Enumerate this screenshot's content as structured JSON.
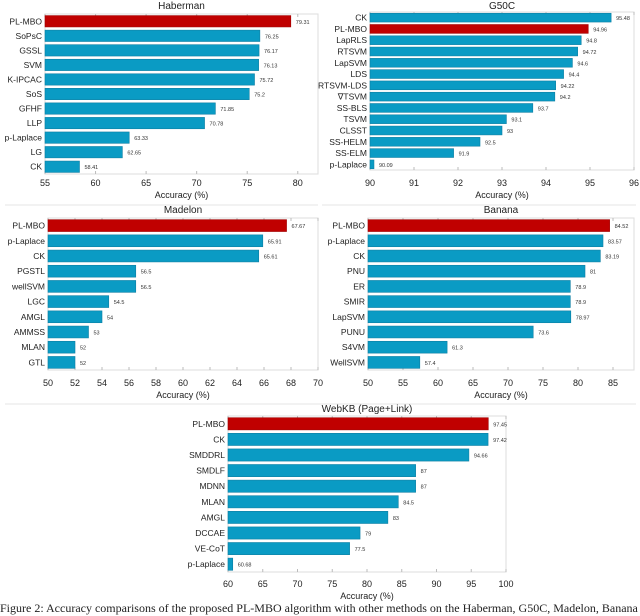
{
  "colors": {
    "highlight": "#c00000",
    "bar": "#0a9bc4",
    "bar_edge": "#0d7fa3"
  },
  "caption": "Figure 2: Accuracy comparisons of the proposed PL-MBO algorithm with other methods on the Haberman, G50C, Madelon, Banana",
  "chart_data": [
    {
      "type": "bar",
      "orientation": "horizontal",
      "title": "Haberman",
      "xlabel": "Accuracy (%)",
      "ylabel": "",
      "xlim": [
        55,
        82
      ],
      "xticks": [
        55,
        60,
        65,
        70,
        75,
        80
      ],
      "highlight": "PL-MBO",
      "categories": [
        "PL-MBO",
        "SoPsC",
        "GSSL",
        "SVM",
        "K-IPCAC",
        "SoS",
        "GFHF",
        "LLP",
        "p-Laplace",
        "LG",
        "CK"
      ],
      "values": [
        79.31,
        76.25,
        76.17,
        76.13,
        75.72,
        75.2,
        71.85,
        70.78,
        63.33,
        62.65,
        58.41
      ],
      "labels": [
        "79.31",
        "76.25",
        "76.17",
        "76.13",
        "75.72",
        "75.2",
        "71.85",
        "70.78",
        "63.33",
        "62.65",
        "58.41"
      ]
    },
    {
      "type": "bar",
      "orientation": "horizontal",
      "title": "G50C",
      "xlabel": "Accuracy (%)",
      "ylabel": "",
      "xlim": [
        90,
        96
      ],
      "xticks": [
        90,
        91,
        92,
        93,
        94,
        95,
        96
      ],
      "highlight": "PL-MBO",
      "categories": [
        "CK",
        "PL-MBO",
        "LapRLS",
        "RTSVM",
        "LapSVM",
        "LDS",
        "RTSVM-LDS",
        "∇TSVM",
        "SS-BLS",
        "TSVM",
        "CLSST",
        "SS-HELM",
        "SS-ELM",
        "p-Laplace"
      ],
      "values": [
        95.48,
        94.96,
        94.8,
        94.72,
        94.6,
        94.4,
        94.22,
        94.2,
        93.7,
        93.1,
        93,
        92.5,
        91.9,
        90.09
      ],
      "labels": [
        "95.48",
        "94.96",
        "94.8",
        "94.72",
        "94.6",
        "94.4",
        "94.22",
        "94.2",
        "93.7",
        "93.1",
        "93",
        "92.5",
        "91.9",
        "90.09"
      ]
    },
    {
      "type": "bar",
      "orientation": "horizontal",
      "title": "Madelon",
      "xlabel": "Accuracy (%)",
      "ylabel": "",
      "xlim": [
        50,
        70
      ],
      "xticks": [
        50,
        52,
        54,
        56,
        58,
        60,
        62,
        64,
        66,
        68,
        70
      ],
      "highlight": "PL-MBO",
      "categories": [
        "PL-MBO",
        "p-Laplace",
        "CK",
        "PGSTL",
        "wellSVM",
        "LGC",
        "AMGL",
        "AMMSS",
        "MLAN",
        "GTL"
      ],
      "values": [
        67.67,
        65.91,
        65.61,
        56.5,
        56.5,
        54.5,
        54,
        53,
        52,
        52
      ],
      "labels": [
        "67.67",
        "65.91",
        "65.61",
        "56.5",
        "56.5",
        "54.5",
        "54",
        "53",
        "52",
        "52"
      ]
    },
    {
      "type": "bar",
      "orientation": "horizontal",
      "title": "Banana",
      "xlabel": "Accuracy (%)",
      "ylabel": "",
      "xlim": [
        50,
        88
      ],
      "xticks": [
        50,
        55,
        60,
        65,
        70,
        75,
        80,
        85
      ],
      "highlight": "PL-MBO",
      "categories": [
        "PL-MBO",
        "p-Laplace",
        "CK",
        "PNU",
        "ER",
        "SMIR",
        "LapSVM",
        "PUNU",
        "S4VM",
        "WellSVM"
      ],
      "values": [
        84.52,
        83.57,
        83.19,
        81,
        78.9,
        78.9,
        78.97,
        73.6,
        61.3,
        57.4
      ],
      "labels": [
        "84.52",
        "83.57",
        "83.19",
        "81",
        "78.9",
        "78.9",
        "78.97",
        "73.6",
        "61.3",
        "57.4"
      ]
    },
    {
      "type": "bar",
      "orientation": "horizontal",
      "title": "WebKB (Page+Link)",
      "xlabel": "Accuracy (%)",
      "ylabel": "",
      "xlim": [
        60,
        100
      ],
      "xticks": [
        60,
        65,
        70,
        75,
        80,
        85,
        90,
        95,
        100
      ],
      "highlight": "PL-MBO",
      "categories": [
        "PL-MBO",
        "CK",
        "SMDDRL",
        "SMDLF",
        "MDNN",
        "MLAN",
        "AMGL",
        "DCCAE",
        "VE-CoT",
        "p-Laplace"
      ],
      "values": [
        97.45,
        97.42,
        94.66,
        87,
        87,
        84.5,
        83,
        79,
        77.5,
        60.68
      ],
      "labels": [
        "97.45",
        "97.42",
        "94.66",
        "87",
        "87",
        "84.5",
        "83",
        "79",
        "77.5",
        "60.68"
      ]
    }
  ]
}
